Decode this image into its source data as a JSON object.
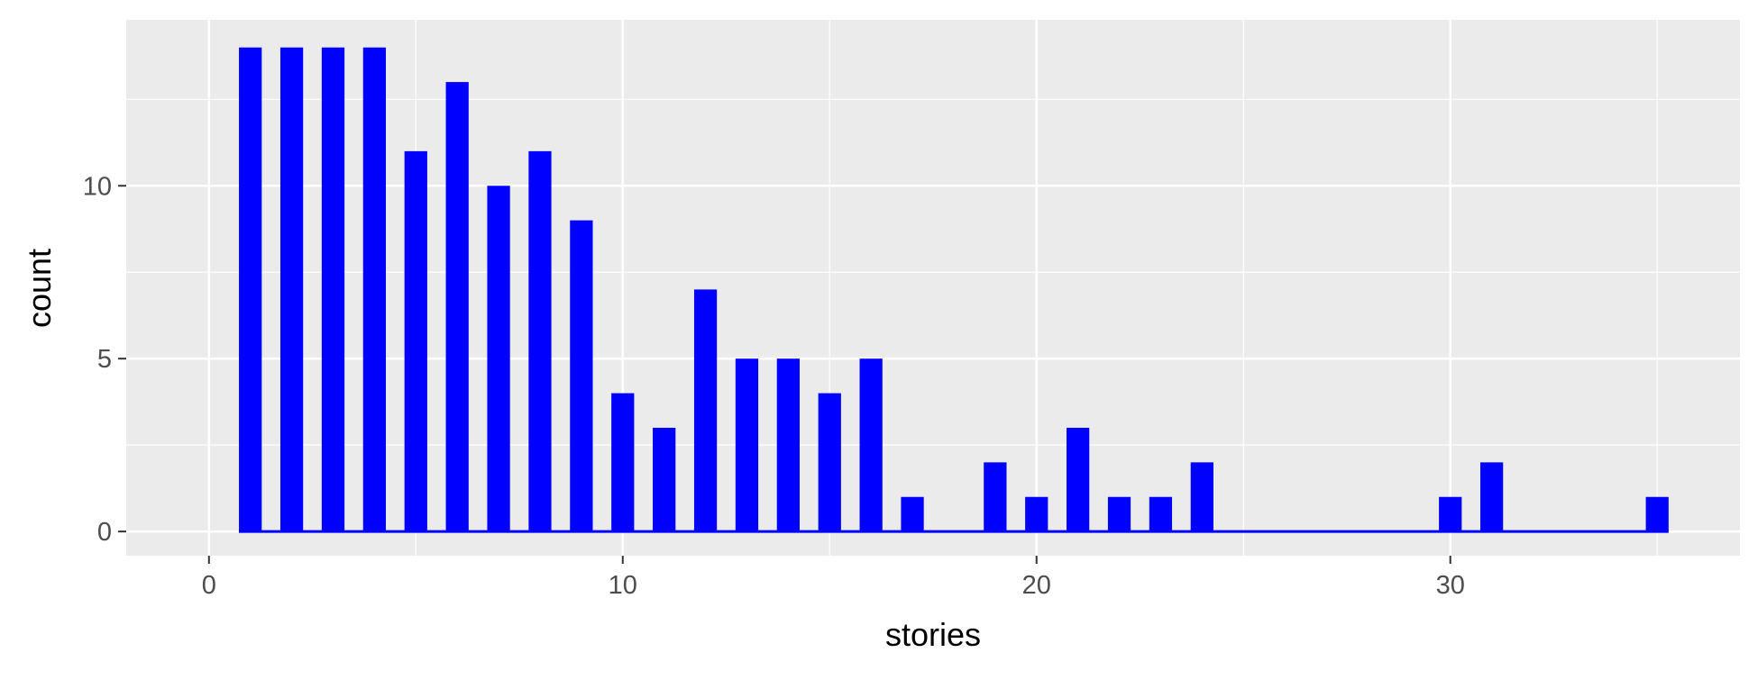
{
  "chart_data": {
    "type": "bar",
    "xlabel": "stories",
    "ylabel": "count",
    "xlim": [
      -2,
      37
    ],
    "ylim": [
      -0.7,
      14.8
    ],
    "x_ticks": [
      0,
      10,
      20,
      30
    ],
    "y_ticks": [
      0,
      5,
      10
    ],
    "grid": true,
    "legend": "none",
    "x": [
      1,
      2,
      3,
      4,
      5,
      6,
      7,
      8,
      9,
      10,
      11,
      12,
      13,
      14,
      15,
      16,
      17,
      18,
      19,
      20,
      21,
      22,
      23,
      24,
      25,
      26,
      27,
      28,
      29,
      30,
      31,
      32,
      33,
      34,
      35
    ],
    "values": [
      14,
      14,
      14,
      14,
      11,
      13,
      10,
      11,
      9,
      4,
      3,
      7,
      5,
      5,
      4,
      5,
      1,
      0,
      2,
      1,
      3,
      1,
      1,
      2,
      0,
      0,
      0,
      0,
      0,
      1,
      2,
      0,
      0,
      0,
      1
    ],
    "bar_color": "#0000ff",
    "panel_background": "#ebebeb",
    "grid_color": "#ffffff",
    "tick_label_color": "#4d4d4d",
    "axis_title_color": "#000000"
  }
}
